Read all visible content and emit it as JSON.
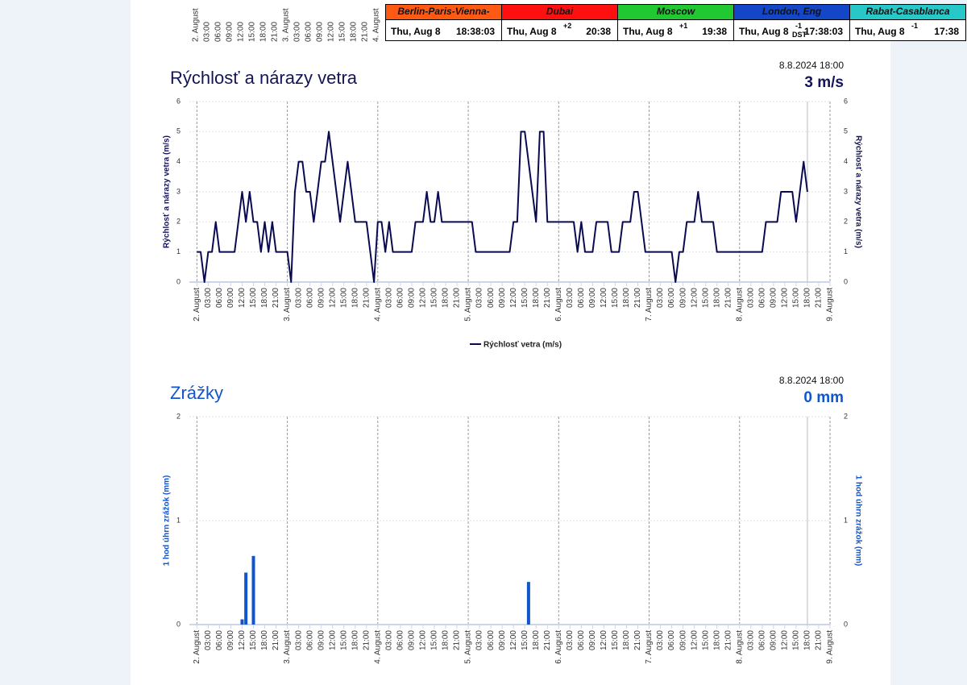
{
  "top_axis_labels": [
    "2. August",
    "03:00",
    "06:00",
    "09:00",
    "12:00",
    "15:00",
    "18:00",
    "21:00",
    "3. August",
    "03:00",
    "06:00",
    "09:00",
    "12:00",
    "15:00",
    "18:00",
    "21:00",
    "4. August"
  ],
  "clocks": [
    {
      "city": "Berlin-Paris-Vienna-Roma",
      "color": "#ff5a14",
      "date": "Thu, Aug 8",
      "time": "18:38:03"
    },
    {
      "city": "Dubai",
      "color": "#ff1010",
      "date": "Thu, Aug 8",
      "offset": "+2",
      "time": "20:38"
    },
    {
      "city": "Moscow",
      "color": "#22c832",
      "date": "Thu, Aug 8",
      "offset": "+1",
      "time": "19:38"
    },
    {
      "city": "London, Eng",
      "color": "#1446c8",
      "date": "Thu, Aug 8",
      "offset": "-1",
      "dst": "DST",
      "time": "17:38:03"
    },
    {
      "city": "Rabat-Casablanca",
      "color": "#28c8c8",
      "date": "Thu, Aug 8",
      "offset": "-1",
      "time": "17:38"
    }
  ],
  "chart_data": [
    {
      "type": "line",
      "title": "Rýchlosť a nárazy vetra",
      "title_color": "#14145a",
      "info_date": "8.8.2024 18:00",
      "info_value": "3 m/s",
      "y_label": "Rýchlosť a nárazy vetra (m/s)",
      "series": [
        {
          "name": "Rýchlosť vetra (m/s)",
          "color": "#0a0a50",
          "x": [
            0,
            1,
            2,
            3,
            4,
            5,
            6,
            7,
            8,
            9,
            10,
            11,
            12,
            13,
            14,
            15,
            16,
            17,
            18,
            19,
            20,
            21,
            22,
            23,
            24,
            25,
            26,
            27,
            28,
            29,
            30,
            31,
            32,
            33,
            34,
            35,
            36,
            37,
            38,
            39,
            40,
            41,
            42,
            43,
            44,
            45,
            46,
            47,
            48,
            49,
            50,
            51,
            52,
            53,
            54,
            55,
            56,
            57,
            58,
            59,
            60,
            61,
            62,
            63,
            64,
            65,
            66,
            67,
            68,
            69,
            70,
            71,
            72,
            73,
            74,
            75,
            76,
            77,
            78,
            79,
            80,
            81,
            82,
            83,
            84,
            85,
            86,
            87,
            88,
            89,
            90,
            91,
            92,
            93,
            94,
            95,
            96,
            97,
            98,
            99,
            100,
            101,
            102,
            103,
            104,
            105,
            106,
            107,
            108,
            109,
            110,
            111,
            112,
            113,
            114,
            115,
            116,
            117,
            118,
            119,
            120,
            121,
            122,
            123,
            124,
            125,
            126,
            127,
            128,
            129,
            130,
            131,
            132,
            133,
            134,
            135,
            136,
            137,
            138,
            139,
            140,
            141,
            142,
            143,
            144,
            145,
            146,
            147,
            148,
            149,
            150,
            151,
            152,
            153,
            154,
            155,
            156,
            157,
            158,
            159,
            160,
            161,
            162
          ],
          "values": [
            1,
            1,
            0,
            1,
            1,
            2,
            1,
            1,
            1,
            1,
            1,
            2,
            3,
            2,
            3,
            2,
            2,
            1,
            2,
            1,
            2,
            1,
            1,
            1,
            1,
            0,
            3,
            4,
            4,
            3,
            3,
            2,
            3,
            4,
            4,
            5,
            4,
            3,
            2,
            3,
            4,
            3,
            2,
            2,
            2,
            2,
            1,
            0,
            2,
            2,
            1,
            2,
            1,
            1,
            1,
            1,
            1,
            1,
            2,
            2,
            2,
            3,
            2,
            2,
            3,
            2,
            2,
            2,
            2,
            2,
            2,
            2,
            2,
            2,
            1,
            1,
            1,
            1,
            1,
            1,
            1,
            1,
            1,
            1,
            2,
            2,
            5,
            5,
            4,
            3,
            2,
            5,
            5,
            2,
            2,
            2,
            2,
            2,
            2,
            2,
            2,
            1,
            2,
            1,
            1,
            1,
            2,
            2,
            2,
            2,
            1,
            1,
            1,
            2,
            2,
            2,
            3,
            3,
            2,
            1,
            1,
            1,
            1,
            1,
            1,
            1,
            1,
            0,
            1,
            1,
            2,
            2,
            2,
            3,
            2,
            2,
            2,
            2,
            1,
            1,
            1,
            1,
            1,
            1,
            1,
            1,
            1,
            1,
            1,
            1,
            1,
            2,
            2,
            2,
            2,
            3,
            3,
            3,
            3,
            2,
            3,
            4,
            3
          ]
        }
      ],
      "marker_x": 162,
      "xlim": [
        -2,
        168
      ],
      "ylim": [
        0,
        6
      ],
      "yticks": [
        0,
        1,
        2,
        3,
        4,
        5,
        6
      ],
      "xticks": [
        {
          "value": 0,
          "label": "2. August"
        },
        {
          "value": 3,
          "label": "03:00"
        },
        {
          "value": 6,
          "label": "06:00"
        },
        {
          "value": 9,
          "label": "09:00"
        },
        {
          "value": 12,
          "label": "12:00"
        },
        {
          "value": 15,
          "label": "15:00"
        },
        {
          "value": 18,
          "label": "18:00"
        },
        {
          "value": 21,
          "label": "21:00"
        },
        {
          "value": 24,
          "label": "3. August"
        },
        {
          "value": 27,
          "label": "03:00"
        },
        {
          "value": 30,
          "label": "06:00"
        },
        {
          "value": 33,
          "label": "09:00"
        },
        {
          "value": 36,
          "label": "12:00"
        },
        {
          "value": 39,
          "label": "15:00"
        },
        {
          "value": 42,
          "label": "18:00"
        },
        {
          "value": 45,
          "label": "21:00"
        },
        {
          "value": 48,
          "label": "4. August"
        },
        {
          "value": 51,
          "label": "03:00"
        },
        {
          "value": 54,
          "label": "06:00"
        },
        {
          "value": 57,
          "label": "09:00"
        },
        {
          "value": 60,
          "label": "12:00"
        },
        {
          "value": 63,
          "label": "15:00"
        },
        {
          "value": 66,
          "label": "18:00"
        },
        {
          "value": 69,
          "label": "21:00"
        },
        {
          "value": 72,
          "label": "5. August"
        },
        {
          "value": 75,
          "label": "03:00"
        },
        {
          "value": 78,
          "label": "06:00"
        },
        {
          "value": 81,
          "label": "09:00"
        },
        {
          "value": 84,
          "label": "12:00"
        },
        {
          "value": 87,
          "label": "15:00"
        },
        {
          "value": 90,
          "label": "18:00"
        },
        {
          "value": 93,
          "label": "21:00"
        },
        {
          "value": 96,
          "label": "6. August"
        },
        {
          "value": 99,
          "label": "03:00"
        },
        {
          "value": 102,
          "label": "06:00"
        },
        {
          "value": 105,
          "label": "09:00"
        },
        {
          "value": 108,
          "label": "12:00"
        },
        {
          "value": 111,
          "label": "15:00"
        },
        {
          "value": 114,
          "label": "18:00"
        },
        {
          "value": 117,
          "label": "21:00"
        },
        {
          "value": 120,
          "label": "7. August"
        },
        {
          "value": 123,
          "label": "03:00"
        },
        {
          "value": 126,
          "label": "06:00"
        },
        {
          "value": 129,
          "label": "09:00"
        },
        {
          "value": 132,
          "label": "12:00"
        },
        {
          "value": 135,
          "label": "15:00"
        },
        {
          "value": 138,
          "label": "18:00"
        },
        {
          "value": 141,
          "label": "21:00"
        },
        {
          "value": 144,
          "label": "8. August"
        },
        {
          "value": 147,
          "label": "03:00"
        },
        {
          "value": 150,
          "label": "06:00"
        },
        {
          "value": 153,
          "label": "09:00"
        },
        {
          "value": 156,
          "label": "12:00"
        },
        {
          "value": 159,
          "label": "15:00"
        },
        {
          "value": 162,
          "label": "18:00"
        },
        {
          "value": 165,
          "label": "21:00"
        },
        {
          "value": 168,
          "label": "9. August"
        }
      ]
    },
    {
      "type": "bar",
      "title": "Zrážky",
      "title_color": "#1155cc",
      "info_date": "8.8.2024 18:00",
      "info_value": "0 mm",
      "y_label": "1 hod úhrn zrážok (mm)",
      "series": [
        {
          "color": "#1155cc",
          "x": [
            12,
            13,
            15,
            88
          ],
          "values": [
            0.05,
            0.5,
            0.66,
            0.41
          ]
        }
      ],
      "marker_x": 162,
      "xlim": [
        -2,
        168
      ],
      "ylim": [
        0,
        2
      ],
      "yticks": [
        0,
        1,
        2
      ],
      "xticks": [
        {
          "value": 0,
          "label": "2. August"
        },
        {
          "value": 3,
          "label": "03:00"
        },
        {
          "value": 6,
          "label": "06:00"
        },
        {
          "value": 9,
          "label": "09:00"
        },
        {
          "value": 12,
          "label": "12:00"
        },
        {
          "value": 15,
          "label": "15:00"
        },
        {
          "value": 18,
          "label": "18:00"
        },
        {
          "value": 21,
          "label": "21:00"
        },
        {
          "value": 24,
          "label": "3. August"
        },
        {
          "value": 27,
          "label": "03:00"
        },
        {
          "value": 30,
          "label": "06:00"
        },
        {
          "value": 33,
          "label": "09:00"
        },
        {
          "value": 36,
          "label": "12:00"
        },
        {
          "value": 39,
          "label": "15:00"
        },
        {
          "value": 42,
          "label": "18:00"
        },
        {
          "value": 45,
          "label": "21:00"
        },
        {
          "value": 48,
          "label": "4. August"
        },
        {
          "value": 51,
          "label": "03:00"
        },
        {
          "value": 54,
          "label": "06:00"
        },
        {
          "value": 57,
          "label": "09:00"
        },
        {
          "value": 60,
          "label": "12:00"
        },
        {
          "value": 63,
          "label": "15:00"
        },
        {
          "value": 66,
          "label": "18:00"
        },
        {
          "value": 69,
          "label": "21:00"
        },
        {
          "value": 72,
          "label": "5. August"
        },
        {
          "value": 75,
          "label": "03:00"
        },
        {
          "value": 78,
          "label": "06:00"
        },
        {
          "value": 81,
          "label": "09:00"
        },
        {
          "value": 84,
          "label": "12:00"
        },
        {
          "value": 87,
          "label": "15:00"
        },
        {
          "value": 90,
          "label": "18:00"
        },
        {
          "value": 93,
          "label": "21:00"
        },
        {
          "value": 96,
          "label": "6. August"
        },
        {
          "value": 99,
          "label": "03:00"
        },
        {
          "value": 102,
          "label": "06:00"
        },
        {
          "value": 105,
          "label": "09:00"
        },
        {
          "value": 108,
          "label": "12:00"
        },
        {
          "value": 111,
          "label": "15:00"
        },
        {
          "value": 114,
          "label": "18:00"
        },
        {
          "value": 117,
          "label": "21:00"
        },
        {
          "value": 120,
          "label": "7. August"
        },
        {
          "value": 123,
          "label": "03:00"
        },
        {
          "value": 126,
          "label": "06:00"
        },
        {
          "value": 129,
          "label": "09:00"
        },
        {
          "value": 132,
          "label": "12:00"
        },
        {
          "value": 135,
          "label": "15:00"
        },
        {
          "value": 138,
          "label": "18:00"
        },
        {
          "value": 141,
          "label": "21:00"
        },
        {
          "value": 144,
          "label": "8. August"
        },
        {
          "value": 147,
          "label": "03:00"
        },
        {
          "value": 150,
          "label": "06:00"
        },
        {
          "value": 153,
          "label": "09:00"
        },
        {
          "value": 156,
          "label": "12:00"
        },
        {
          "value": 159,
          "label": "15:00"
        },
        {
          "value": 162,
          "label": "18:00"
        },
        {
          "value": 165,
          "label": "21:00"
        },
        {
          "value": 168,
          "label": "9. August"
        }
      ]
    }
  ]
}
